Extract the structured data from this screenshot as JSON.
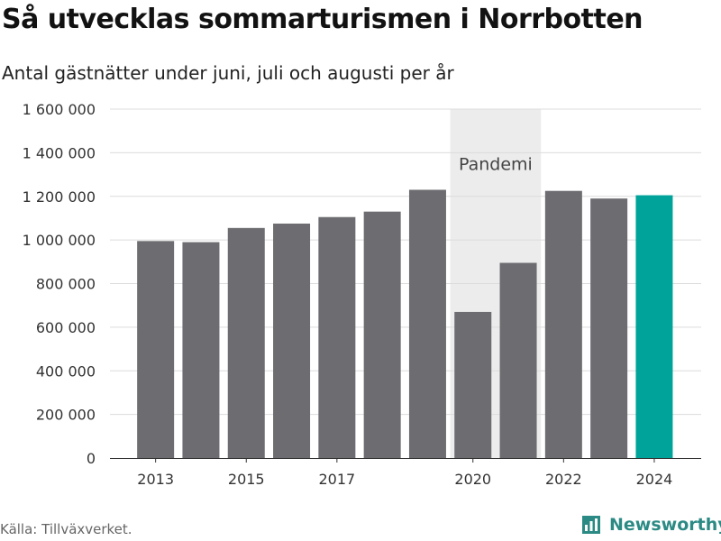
{
  "header": {
    "title": "Så utvecklas sommarturismen i Norrbotten",
    "subtitle": "Antal gästnätter under juni, juli och augusti per år"
  },
  "footer": {
    "source": "Källa: Tillväxverket.",
    "brand": "Newsworthy"
  },
  "colors": {
    "bar": "#6d6c70",
    "highlight_bar": "#00a39a",
    "band": "#ececec",
    "grid": "#dcdcdc",
    "brand": "#2b8a84"
  },
  "chart_data": {
    "type": "bar",
    "title": "Så utvecklas sommarturismen i Norrbotten",
    "subtitle": "Antal gästnätter under juni, juli och augusti per år",
    "categories": [
      "2013",
      "2014",
      "2015",
      "2016",
      "2017",
      "2018",
      "2019",
      "2020",
      "2021",
      "2022",
      "2023",
      "2024"
    ],
    "values": [
      995000,
      990000,
      1055000,
      1075000,
      1105000,
      1130000,
      1230000,
      670000,
      895000,
      1225000,
      1190000,
      1205000
    ],
    "highlight": [
      "2024"
    ],
    "ylim": [
      0,
      1600000
    ],
    "yticks": [
      0,
      200000,
      400000,
      600000,
      800000,
      1000000,
      1200000,
      1400000,
      1600000
    ],
    "ytick_labels": [
      "0",
      "200 000",
      "400 000",
      "600 000",
      "800 000",
      "1 000 000",
      "1 200 000",
      "1 400 000",
      "1 600 000"
    ],
    "xtick_labels": [
      "2013",
      "2015",
      "2017",
      "2020",
      "2022",
      "2024"
    ],
    "grid": true,
    "annotations": [
      {
        "label": "Pandemi",
        "from": "2020",
        "to": "2021"
      }
    ]
  }
}
